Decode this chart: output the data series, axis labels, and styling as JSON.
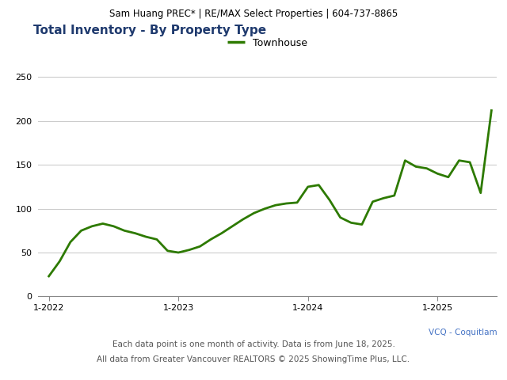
{
  "header_text": "Sam Huang PREC* | RE/MAX Select Properties | 604-737-8865",
  "title": "Total Inventory - By Property Type",
  "legend_label": "Townhouse",
  "line_color": "#2d7a00",
  "legend_line_color": "#2d7a00",
  "background_color": "#ffffff",
  "header_bg_color": "#e0e0e0",
  "ylim": [
    0,
    260
  ],
  "yticks": [
    0,
    50,
    100,
    150,
    200,
    250
  ],
  "xtick_labels": [
    "1-2022",
    "1-2023",
    "1-2024",
    "1-2025"
  ],
  "footer_right": "VCQ - Coquitlam",
  "footer_right_color": "#4472c4",
  "footer_center": "Each data point is one month of activity. Data is from June 18, 2025.",
  "footer_bottom": "All data from Greater Vancouver REALTORS © 2025 ShowingTime Plus, LLC.",
  "footer_color": "#555555",
  "title_color": "#1f3a6e",
  "header_fontsize": 8.5,
  "title_fontsize": 11,
  "footer_fontsize": 7.5,
  "tick_fontsize": 8,
  "legend_fontsize": 9,
  "values": [
    23,
    40,
    62,
    75,
    80,
    83,
    80,
    75,
    72,
    68,
    65,
    52,
    50,
    53,
    57,
    65,
    72,
    80,
    88,
    95,
    100,
    104,
    106,
    107,
    125,
    127,
    110,
    90,
    84,
    82,
    108,
    112,
    115,
    155,
    148,
    146,
    140,
    136,
    155,
    153,
    118,
    212
  ],
  "xtick_positions": [
    0,
    12,
    24,
    36
  ],
  "grid_color": "#cccccc",
  "spine_color": "#888888",
  "line_width": 2.0
}
